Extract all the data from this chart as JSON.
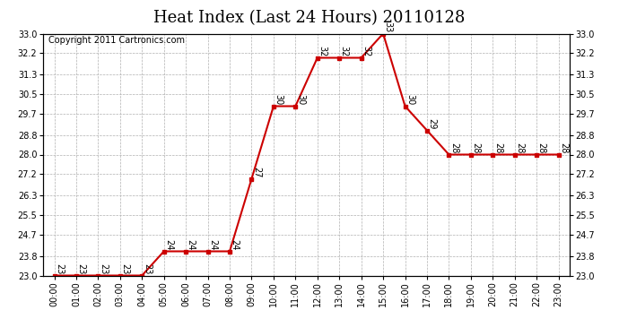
{
  "title": "Heat Index (Last 24 Hours) 20110128",
  "copyright": "Copyright 2011 Cartronics.com",
  "x_labels": [
    "00:00",
    "01:00",
    "02:00",
    "03:00",
    "04:00",
    "05:00",
    "06:00",
    "07:00",
    "08:00",
    "09:00",
    "10:00",
    "11:00",
    "12:00",
    "13:00",
    "14:00",
    "15:00",
    "16:00",
    "17:00",
    "18:00",
    "19:00",
    "20:00",
    "21:00",
    "22:00",
    "23:00"
  ],
  "y_values": [
    23,
    23,
    23,
    23,
    23,
    24,
    24,
    24,
    24,
    27,
    30,
    30,
    32,
    32,
    32,
    33,
    30,
    29,
    28,
    28,
    28,
    28,
    28,
    28
  ],
  "ylim_min": 23.0,
  "ylim_max": 33.0,
  "y_ticks": [
    23.0,
    23.8,
    24.7,
    25.5,
    26.3,
    27.2,
    28.0,
    28.8,
    29.7,
    30.5,
    31.3,
    32.2,
    33.0
  ],
  "line_color": "#cc0000",
  "marker_color": "#cc0000",
  "bg_color": "#ffffff",
  "grid_color": "#b0b0b0",
  "title_fontsize": 13,
  "copyright_fontsize": 7,
  "label_fontsize": 7,
  "annotation_fontsize": 7
}
